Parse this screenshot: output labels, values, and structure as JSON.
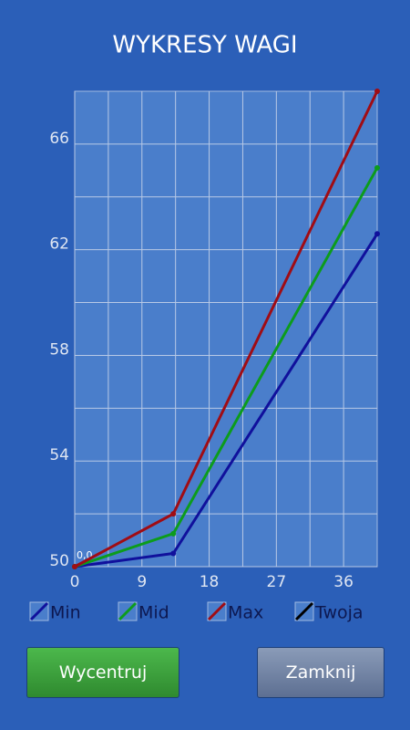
{
  "chart_data": {
    "type": "line",
    "title": "WYKRESY WAGI",
    "x": [
      0,
      13.2,
      40.5
    ],
    "xlim": [
      0,
      40.5
    ],
    "xticks": [
      0,
      9,
      18,
      27,
      36
    ],
    "ylim": [
      50,
      68
    ],
    "yticks": [
      50,
      54,
      58,
      62,
      66
    ],
    "grid": true,
    "annotation": "0,0",
    "series": [
      {
        "name": "Min",
        "color": "#10109c",
        "values": [
          50,
          50.5,
          62.6
        ]
      },
      {
        "name": "Mid",
        "color": "#0c9c1c",
        "values": [
          50,
          51.25,
          65.1
        ]
      },
      {
        "name": "Max",
        "color": "#a00c14",
        "values": [
          50,
          52,
          68
        ]
      },
      {
        "name": "Twoja",
        "color": "#000000",
        "values": [
          null,
          null,
          null
        ]
      }
    ]
  },
  "buttons": {
    "center": "Wycentruj",
    "close": "Zamknij"
  }
}
